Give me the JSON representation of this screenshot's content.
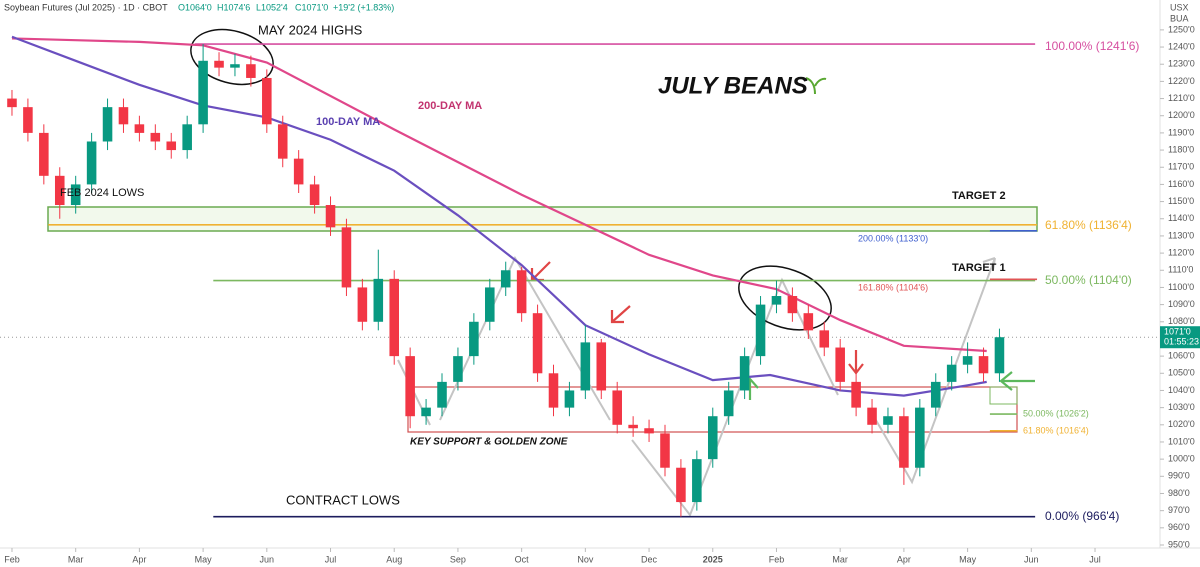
{
  "header": {
    "title": "Soybean Futures (Jul 2025) · 1D · CBOT",
    "open": "O1064'0",
    "high": "H1074'6",
    "low": "L1052'4",
    "close": "C1071'0",
    "change": "+19'2 (+1.83%)",
    "currency": "USX",
    "unit": "BUA"
  },
  "chart_data": {
    "type": "candlestick",
    "title": "JULY BEANS",
    "x": [
      0,
      0.25,
      0.5,
      0.75,
      1,
      1.25,
      1.5,
      1.75,
      2,
      2.25,
      2.5,
      2.75,
      3,
      3.25,
      3.5,
      3.75,
      4,
      4.25,
      4.5,
      4.75,
      5,
      5.25,
      5.5,
      5.75,
      6,
      6.25,
      6.5,
      6.75,
      7,
      7.25,
      7.5,
      7.75,
      8,
      8.25,
      8.5,
      8.75,
      9,
      9.25,
      9.5,
      9.75,
      10,
      10.25,
      10.5,
      10.75,
      11,
      11.25,
      11.5,
      11.75,
      12,
      12.25,
      12.5,
      12.75,
      13,
      13.25,
      13.5,
      13.75,
      14,
      14.25,
      14.5,
      14.75,
      15,
      15.25,
      15.5
    ],
    "open": [
      1210,
      1205,
      1190,
      1165,
      1148,
      1160,
      1185,
      1205,
      1195,
      1190,
      1185,
      1180,
      1195,
      1232,
      1228,
      1230,
      1222,
      1195,
      1175,
      1160,
      1148,
      1135,
      1100,
      1080,
      1105,
      1060,
      1025,
      1030,
      1045,
      1060,
      1080,
      1100,
      1110,
      1085,
      1050,
      1030,
      1040,
      1068,
      1040,
      1020,
      1018,
      1015,
      995,
      975,
      1000,
      1025,
      1040,
      1060,
      1090,
      1095,
      1085,
      1075,
      1065,
      1045,
      1030,
      1020,
      1025,
      995,
      1030,
      1045,
      1055,
      1060,
      1050
    ],
    "high": [
      1215,
      1210,
      1195,
      1170,
      1165,
      1190,
      1210,
      1210,
      1200,
      1195,
      1190,
      1200,
      1241.75,
      1237,
      1236,
      1235,
      1227,
      1200,
      1180,
      1165,
      1153,
      1140,
      1105,
      1122,
      1110,
      1065,
      1035,
      1050,
      1065,
      1085,
      1105,
      1115,
      1112,
      1090,
      1055,
      1045,
      1078,
      1070,
      1045,
      1025,
      1023,
      1020,
      1000,
      1005,
      1030,
      1045,
      1065,
      1095,
      1104,
      1100,
      1090,
      1080,
      1070,
      1050,
      1035,
      1030,
      1030,
      1035,
      1050,
      1060,
      1068,
      1065,
      1076
    ],
    "low": [
      1200,
      1185,
      1160,
      1140,
      1143,
      1155,
      1180,
      1190,
      1185,
      1180,
      1175,
      1175,
      1190,
      1223,
      1223,
      1217,
      1190,
      1170,
      1155,
      1143,
      1130,
      1095,
      1075,
      1075,
      1055,
      1018,
      1020,
      1025,
      1040,
      1055,
      1075,
      1095,
      1080,
      1045,
      1025,
      1025,
      1035,
      1035,
      1015,
      1013,
      1010,
      990,
      966.5,
      970,
      995,
      1020,
      1035,
      1055,
      1085,
      1080,
      1070,
      1060,
      1040,
      1025,
      1015,
      1015,
      985,
      990,
      1025,
      1040,
      1050,
      1045,
      1045
    ],
    "close": [
      1205,
      1190,
      1165,
      1148,
      1160,
      1185,
      1205,
      1195,
      1190,
      1185,
      1180,
      1195,
      1232,
      1228,
      1230,
      1222,
      1195,
      1175,
      1160,
      1148,
      1135,
      1100,
      1080,
      1105,
      1060,
      1025,
      1030,
      1045,
      1060,
      1080,
      1100,
      1110,
      1085,
      1050,
      1030,
      1040,
      1068,
      1040,
      1020,
      1018,
      1015,
      995,
      975,
      1000,
      1025,
      1040,
      1060,
      1090,
      1095,
      1085,
      1075,
      1065,
      1045,
      1030,
      1020,
      1025,
      995,
      1030,
      1045,
      1055,
      1060,
      1050,
      1071
    ],
    "up_color": "#089981",
    "down_color": "#f23645",
    "xlim": [
      -0.188,
      18.02
    ],
    "xticks": [
      {
        "value": 0,
        "label": "Feb"
      },
      {
        "value": 1,
        "label": "Mar"
      },
      {
        "value": 2,
        "label": "Apr"
      },
      {
        "value": 3,
        "label": "May"
      },
      {
        "value": 4,
        "label": "Jun"
      },
      {
        "value": 5,
        "label": "Jul"
      },
      {
        "value": 6,
        "label": "Aug"
      },
      {
        "value": 7,
        "label": "Sep"
      },
      {
        "value": 8,
        "label": "Oct"
      },
      {
        "value": 9,
        "label": "Nov"
      },
      {
        "value": 10,
        "label": "Dec"
      },
      {
        "value": 11,
        "label": "2025"
      },
      {
        "value": 12,
        "label": "Feb"
      },
      {
        "value": 13,
        "label": "Mar"
      },
      {
        "value": 14,
        "label": "Apr"
      },
      {
        "value": 15,
        "label": "May"
      },
      {
        "value": 16,
        "label": "Jun"
      },
      {
        "value": 17,
        "label": "Jul"
      }
    ],
    "ylim": [
      948.25,
      1267.4
    ],
    "yticks": [
      {
        "value": 950,
        "label": "950'0"
      },
      {
        "value": 960,
        "label": "960'0"
      },
      {
        "value": 970,
        "label": "970'0"
      },
      {
        "value": 980,
        "label": "980'0"
      },
      {
        "value": 990,
        "label": "990'0"
      },
      {
        "value": 1000,
        "label": "1000'0"
      },
      {
        "value": 1010,
        "label": "1010'0"
      },
      {
        "value": 1020,
        "label": "1020'0"
      },
      {
        "value": 1030,
        "label": "1030'0"
      },
      {
        "value": 1040,
        "label": "1040'0"
      },
      {
        "value": 1050,
        "label": "1050'0"
      },
      {
        "value": 1060,
        "label": "1060'0"
      },
      {
        "value": 1070,
        "label": "1070'0"
      },
      {
        "value": 1080,
        "label": "1080'0"
      },
      {
        "value": 1090,
        "label": "1090'0"
      },
      {
        "value": 1100,
        "label": "1100'0"
      },
      {
        "value": 1110,
        "label": "1110'0"
      },
      {
        "value": 1120,
        "label": "1120'0"
      },
      {
        "value": 1130,
        "label": "1130'0"
      },
      {
        "value": 1140,
        "label": "1140'0"
      },
      {
        "value": 1150,
        "label": "1150'0"
      },
      {
        "value": 1160,
        "label": "1160'0"
      },
      {
        "value": 1170,
        "label": "1170'0"
      },
      {
        "value": 1180,
        "label": "1180'0"
      },
      {
        "value": 1190,
        "label": "1190'0"
      },
      {
        "value": 1200,
        "label": "1200'0"
      },
      {
        "value": 1210,
        "label": "1210'0"
      },
      {
        "value": 1220,
        "label": "1220'0"
      },
      {
        "value": 1230,
        "label": "1230'0"
      },
      {
        "value": 1240,
        "label": "1240'0"
      },
      {
        "value": 1250,
        "label": "1250'0"
      }
    ],
    "moving_averages": [
      {
        "name": "200-DAY MA",
        "color": "#e0478a",
        "x": [
          0,
          1,
          2,
          3,
          4,
          6,
          8,
          10,
          11,
          12,
          13,
          14,
          15.3
        ],
        "values": [
          1245,
          1244,
          1243,
          1241,
          1231,
          1192,
          1154,
          1119,
          1107,
          1099,
          1081,
          1066,
          1063
        ]
      },
      {
        "name": "100-DAY MA",
        "color": "#6a4fbf",
        "x": [
          0,
          1,
          2,
          3,
          4,
          5,
          6,
          7,
          8,
          9,
          10,
          11,
          11.9,
          13,
          14,
          15,
          15.3
        ],
        "values": [
          1246,
          1232,
          1218,
          1206,
          1199,
          1186,
          1168,
          1142,
          1113,
          1078,
          1061,
          1046,
          1049,
          1040,
          1037,
          1043,
          1045
        ]
      }
    ],
    "levels": [
      {
        "label": "100.00% (1241'6)",
        "value": 1241.75,
        "color": "#d64fa0",
        "x_from": 2.87,
        "x_to": 16.06
      },
      {
        "label": "61.80% (1136'4)",
        "value": 1136.5,
        "color": "#f0b232",
        "x_from": 0.57,
        "x_to": 16.09
      },
      {
        "label": "200.00% (1133'0)",
        "value": 1133,
        "color": "#3f5fcf",
        "x_from": 15.35,
        "x_to": 16.09
      },
      {
        "label": "50.00% (1104'0)",
        "value": 1104,
        "color": "#7cb860",
        "x_from": 3.16,
        "x_to": 16.06
      },
      {
        "label": "161.80% (1104'6)",
        "value": 1104.75,
        "color": "#e05555",
        "x_from": 15.35,
        "x_to": 16.09
      },
      {
        "label": "50.00% (1026'2)",
        "value": 1026.25,
        "color": "#7cb860",
        "x_from": 15.35,
        "x_to": 15.78
      },
      {
        "label": "61.80% (1016'4)",
        "value": 1016.5,
        "color": "#f0b232",
        "x_from": 15.35,
        "x_to": 15.78
      },
      {
        "label": "0.00% (966'4)",
        "value": 966.5,
        "color": "#1c1c5e",
        "x_from": 3.16,
        "x_to": 16.06
      }
    ],
    "annotations": [
      "MAY 2024 HIGHS",
      "FEB 2024 LOWS",
      "TARGET 2",
      "TARGET 1",
      "KEY SUPPORT & GOLDEN ZONE",
      "CONTRACT LOWS"
    ],
    "last_price": {
      "value": 1071,
      "label": "1071'0",
      "timer": "01:55:23"
    }
  }
}
